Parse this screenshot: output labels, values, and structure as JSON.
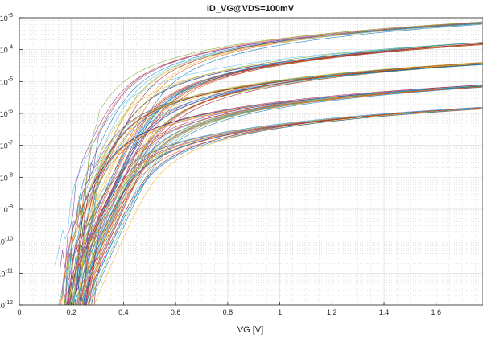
{
  "chart_data": {
    "type": "line",
    "title": "ID_VG@VDS=100mV",
    "xlabel": "VG [V]",
    "ylabel": "",
    "xlim": [
      0,
      1.78
    ],
    "ylim": [
      1e-12,
      0.001
    ],
    "yscale": "log",
    "grid": true,
    "minor_grid": true,
    "x_ticks": [
      "0",
      "0.2",
      "0.4",
      "0.6",
      "0.8",
      "1",
      "1.2",
      "1.4",
      "1.6"
    ],
    "x_tick_values": [
      0,
      0.2,
      0.4,
      0.6,
      0.8,
      1.0,
      1.2,
      1.4,
      1.6
    ],
    "y_ticks": [
      {
        "base": "10",
        "exp": "-12"
      },
      {
        "base": "10",
        "exp": "-11"
      },
      {
        "base": "10",
        "exp": "-10"
      },
      {
        "base": "10",
        "exp": "-9"
      },
      {
        "base": "10",
        "exp": "-8"
      },
      {
        "base": "10",
        "exp": "-7"
      },
      {
        "base": "10",
        "exp": "-6"
      },
      {
        "base": "10",
        "exp": "-5"
      },
      {
        "base": "10",
        "exp": "-4"
      },
      {
        "base": "10",
        "exp": "-3"
      }
    ],
    "series_groups": [
      {
        "sat_current_at_1_78V": 0.0007,
        "count": 12
      },
      {
        "sat_current_at_1_78V": 0.00016,
        "count": 18
      },
      {
        "sat_current_at_1_78V": 3.8e-05,
        "count": 22
      },
      {
        "sat_current_at_1_78V": 7.5e-06,
        "count": 20
      },
      {
        "sat_current_at_1_78V": 1.5e-06,
        "count": 14
      }
    ],
    "colors": [
      "#0072BD",
      "#D95319",
      "#EDB120",
      "#7E2F8E",
      "#77AC30",
      "#4DBEEE",
      "#A2142F"
    ]
  }
}
